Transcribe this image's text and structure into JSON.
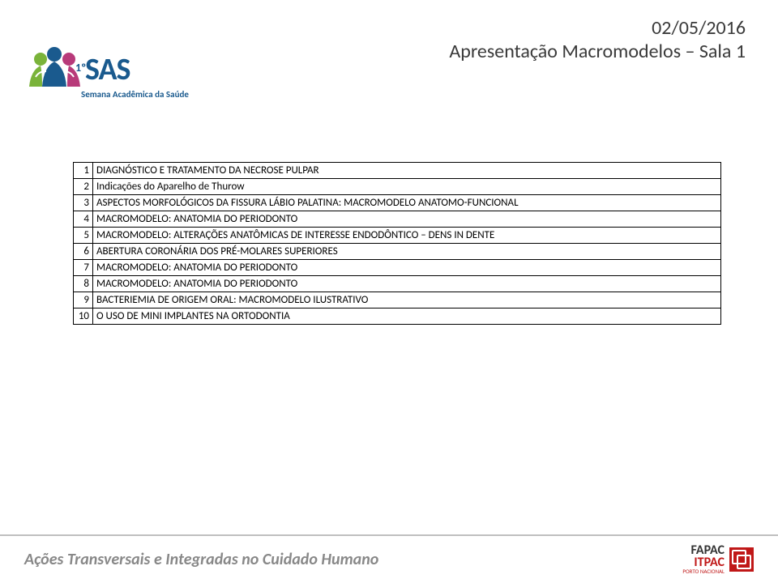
{
  "header": {
    "date": "02/05/2016",
    "title": "Apresentação Macromodelos – Sala 1"
  },
  "logo": {
    "brand": "SAS",
    "edition": "1º",
    "subtitle": "Semana Acadêmica da Saúde"
  },
  "table": {
    "rows": [
      {
        "n": "1",
        "text": "DIAGNÓSTICO E TRATAMENTO DA NECROSE PULPAR"
      },
      {
        "n": "2",
        "text": "Indicações do Aparelho de Thurow"
      },
      {
        "n": "3",
        "text": "ASPECTOS MORFOLÓGICOS DA FISSURA LÁBIO PALATINA: MACROMODELO ANATOMO-FUNCIONAL"
      },
      {
        "n": "4",
        "text": "MACROMODELO: ANATOMIA DO PERIODONTO"
      },
      {
        "n": "5",
        "text": "MACROMODELO: ALTERAÇÕES ANATÔMICAS DE INTERESSE ENDODÔNTICO – DENS IN DENTE"
      },
      {
        "n": "6",
        "text": "ABERTURA CORONÁRIA DOS PRÉ-MOLARES SUPERIORES"
      },
      {
        "n": "7",
        "text": "MACROMODELO: ANATOMIA DO PERIODONTO"
      },
      {
        "n": "8",
        "text": "MACROMODELO: ANATOMIA DO PERIODONTO"
      },
      {
        "n": "9",
        "text": "BACTERIEMIA DE ORIGEM ORAL: MACROMODELO ILUSTRATIVO"
      },
      {
        "n": "10",
        "text": "O USO DE MINI IMPLANTES NA ORTODONTIA"
      }
    ]
  },
  "footer": {
    "text": "Ações Transversais e Integradas no Cuidado Humano",
    "org1": "FAPAC",
    "org2": "ITPAC",
    "org2_sub": "PORTO NACIONAL"
  },
  "colors": {
    "text_dark": "#3a3a3a",
    "brand_blue": "#1a5a8e",
    "brand_red": "#c01818",
    "brand_green": "#7ab33a",
    "brand_pink": "#b83a7a",
    "footer_gray": "#888888",
    "border_gray": "#bfbfbf"
  }
}
